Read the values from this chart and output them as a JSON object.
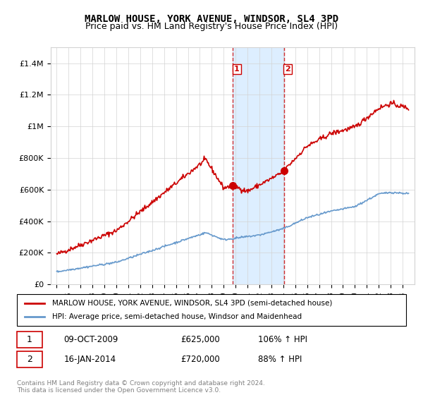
{
  "title": "MARLOW HOUSE, YORK AVENUE, WINDSOR, SL4 3PD",
  "subtitle": "Price paid vs. HM Land Registry's House Price Index (HPI)",
  "legend_line1": "MARLOW HOUSE, YORK AVENUE, WINDSOR, SL4 3PD (semi-detached house)",
  "legend_line2": "HPI: Average price, semi-detached house, Windsor and Maidenhead",
  "transaction1_label": "1",
  "transaction1_date": "09-OCT-2009",
  "transaction1_price": "£625,000",
  "transaction1_hpi": "106% ↑ HPI",
  "transaction2_label": "2",
  "transaction2_date": "16-JAN-2014",
  "transaction2_price": "£720,000",
  "transaction2_hpi": "88% ↑ HPI",
  "footer": "Contains HM Land Registry data © Crown copyright and database right 2024.\nThis data is licensed under the Open Government Licence v3.0.",
  "red_color": "#cc0000",
  "blue_color": "#6699cc",
  "shade_color": "#ddeeff",
  "ylim": [
    0,
    1500000
  ],
  "yticks": [
    0,
    200000,
    400000,
    600000,
    800000,
    1000000,
    1200000,
    1400000
  ],
  "ytick_labels": [
    "£0",
    "£200K",
    "£400K",
    "£600K",
    "£800K",
    "£1M",
    "£1.2M",
    "£1.4M"
  ],
  "transaction1_year": 2009.77,
  "transaction2_year": 2014.04,
  "transaction1_value": 625000,
  "transaction2_value": 720000
}
